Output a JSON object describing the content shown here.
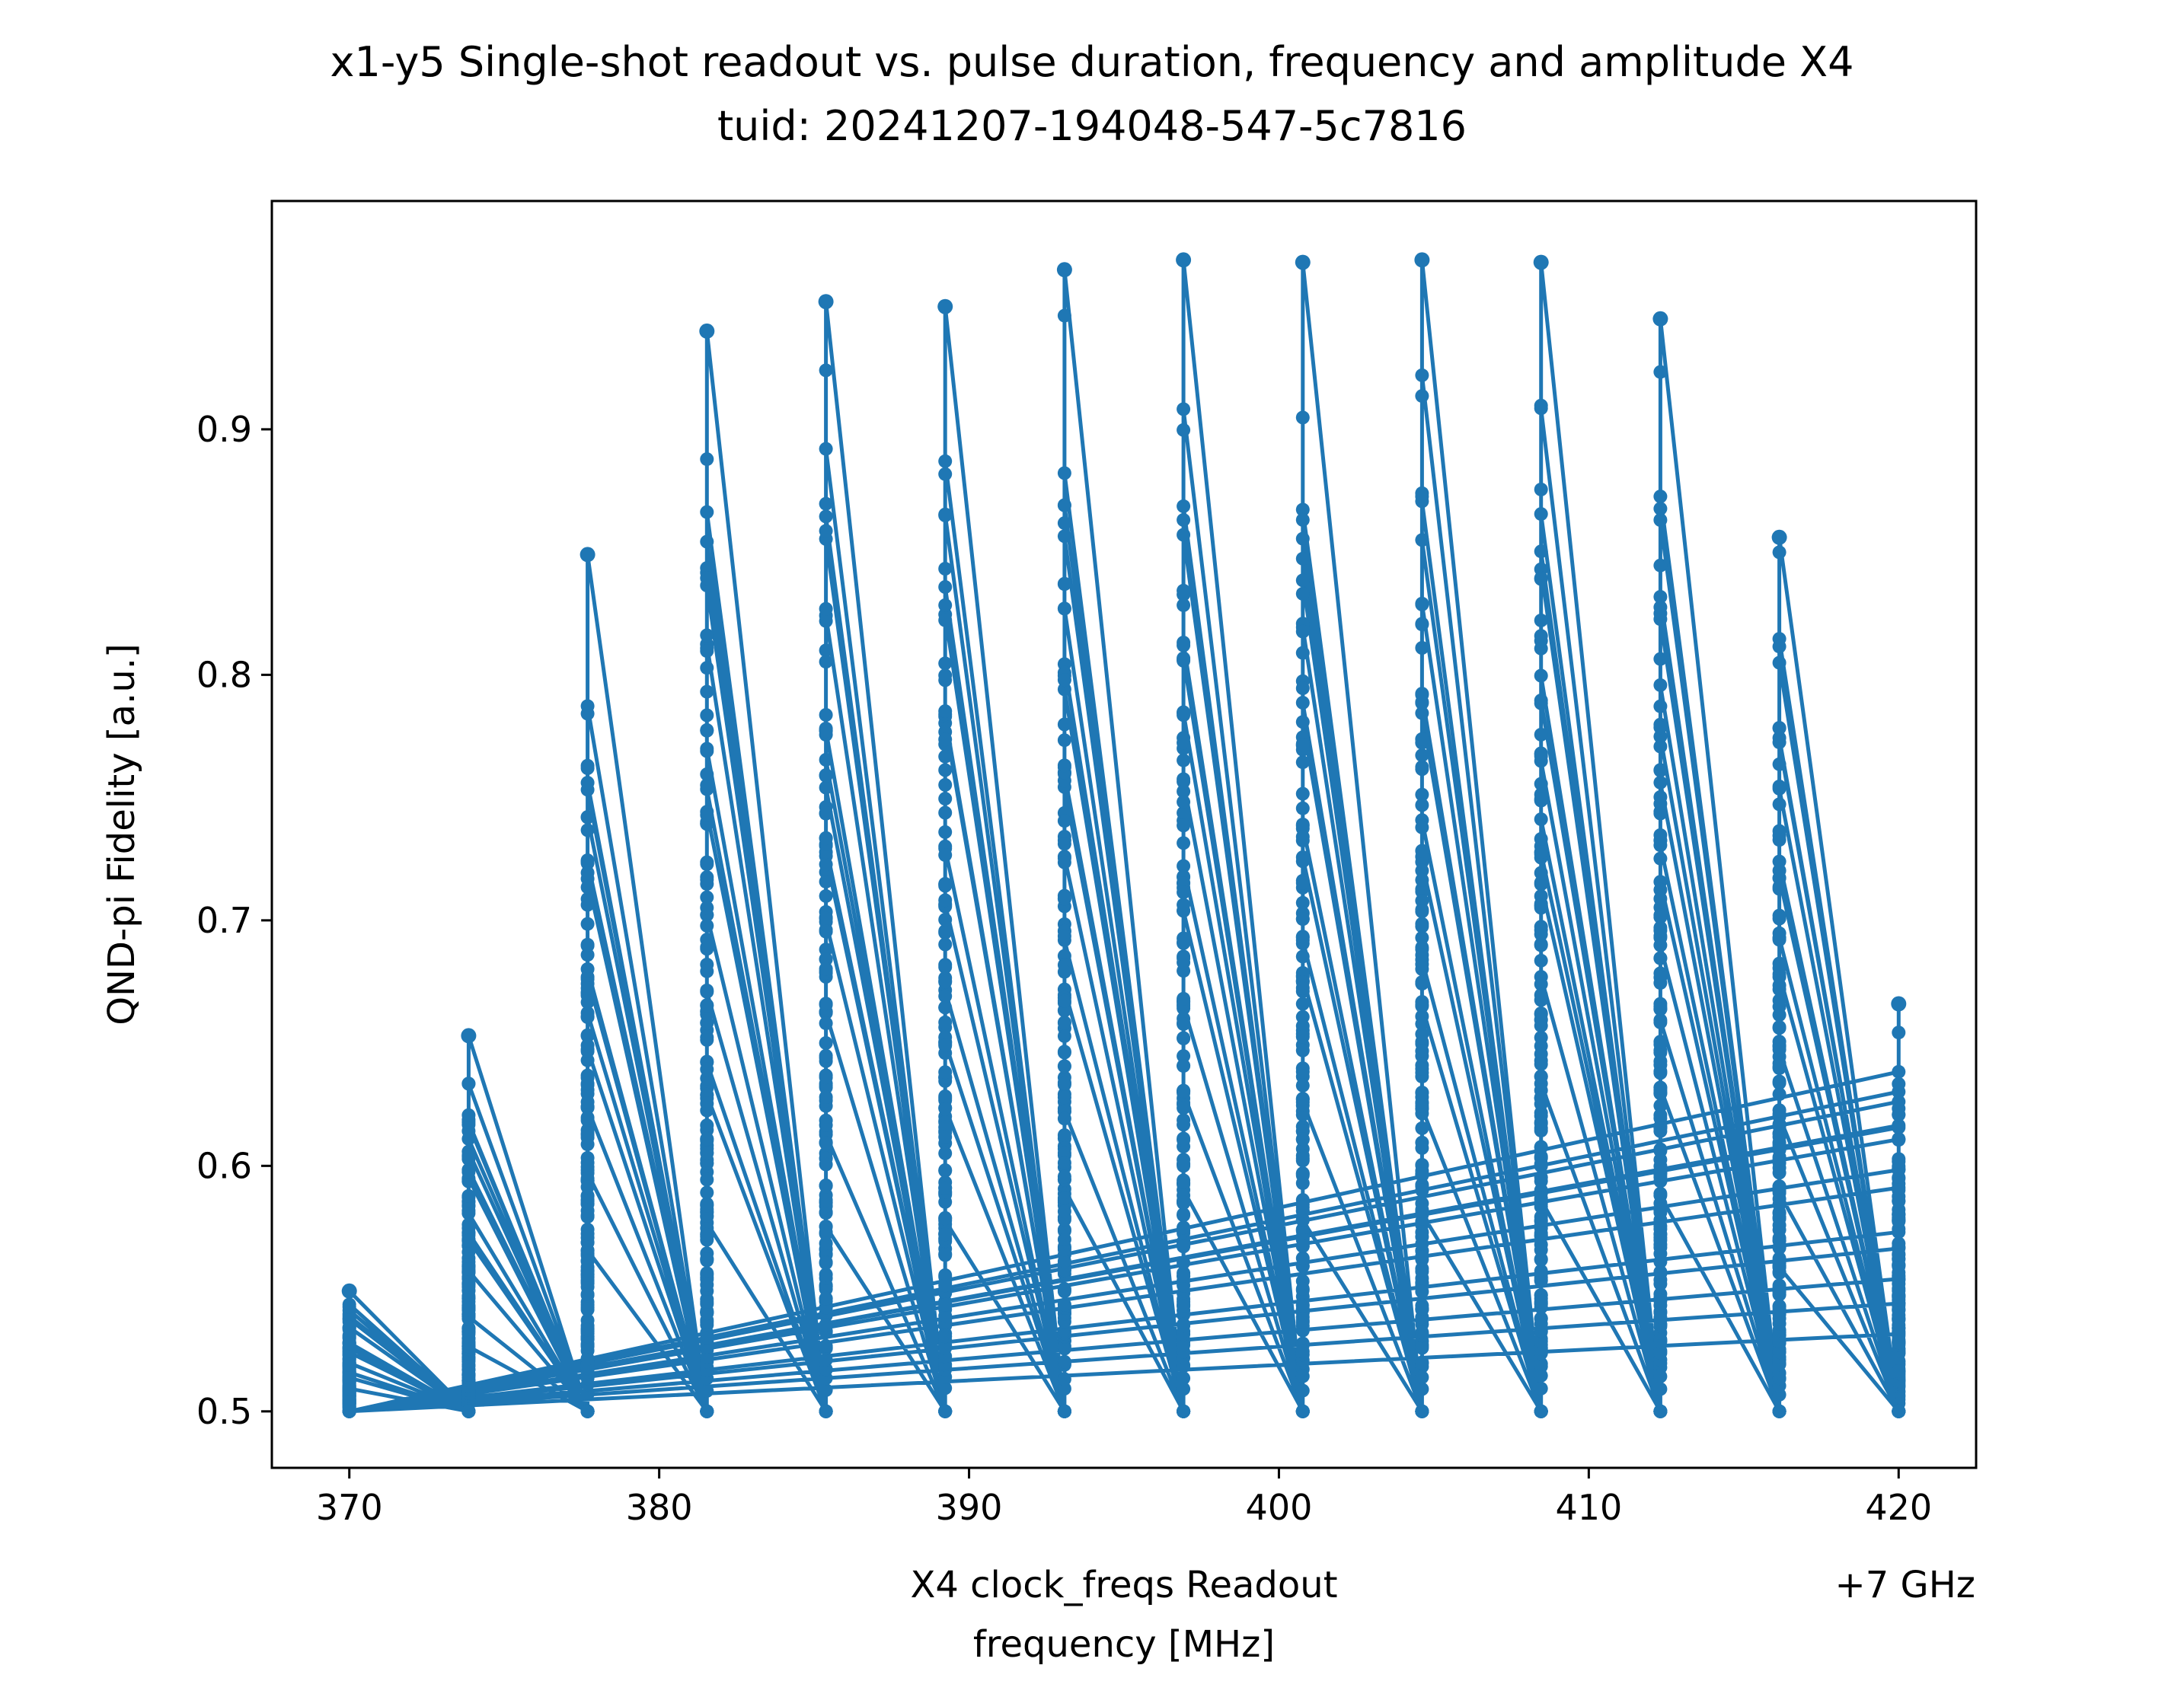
{
  "chart_data": {
    "type": "line",
    "title": "x1-y5 Single-shot readout vs. pulse duration, frequency and amplitude X4",
    "subtitle": "tuid: 20241207-194048-547-5c7816",
    "xlabel_line1": "X4 clock_freqs Readout",
    "xlabel_line2": "frequency [MHz]",
    "x_offset_label": "+7 GHz",
    "ylabel": "QND-pi Fidelity [a.u.]",
    "xlim": [
      367.5,
      422.5
    ],
    "ylim": [
      0.477,
      0.993
    ],
    "xticks": [
      370,
      380,
      390,
      400,
      410,
      420
    ],
    "xtick_labels": [
      "370",
      "380",
      "390",
      "400",
      "410",
      "420"
    ],
    "yticks": [
      0.5,
      0.6,
      0.7,
      0.8,
      0.9
    ],
    "ytick_labels": [
      "0.5",
      "0.6",
      "0.7",
      "0.8",
      "0.9"
    ],
    "grid": false,
    "series_color": "#1f77b4",
    "marker": "circle",
    "frequencies": [
      370.0,
      373.85,
      377.69,
      381.54,
      385.38,
      389.23,
      393.08,
      396.92,
      400.77,
      404.62,
      408.46,
      412.31,
      416.15,
      420.0
    ],
    "max_fidelity_per_frequency": [
      0.549,
      0.653,
      0.849,
      0.94,
      0.952,
      0.95,
      0.965,
      0.969,
      0.968,
      0.969,
      0.968,
      0.945,
      0.856,
      0.666
    ],
    "min_fidelity": 0.5
  }
}
